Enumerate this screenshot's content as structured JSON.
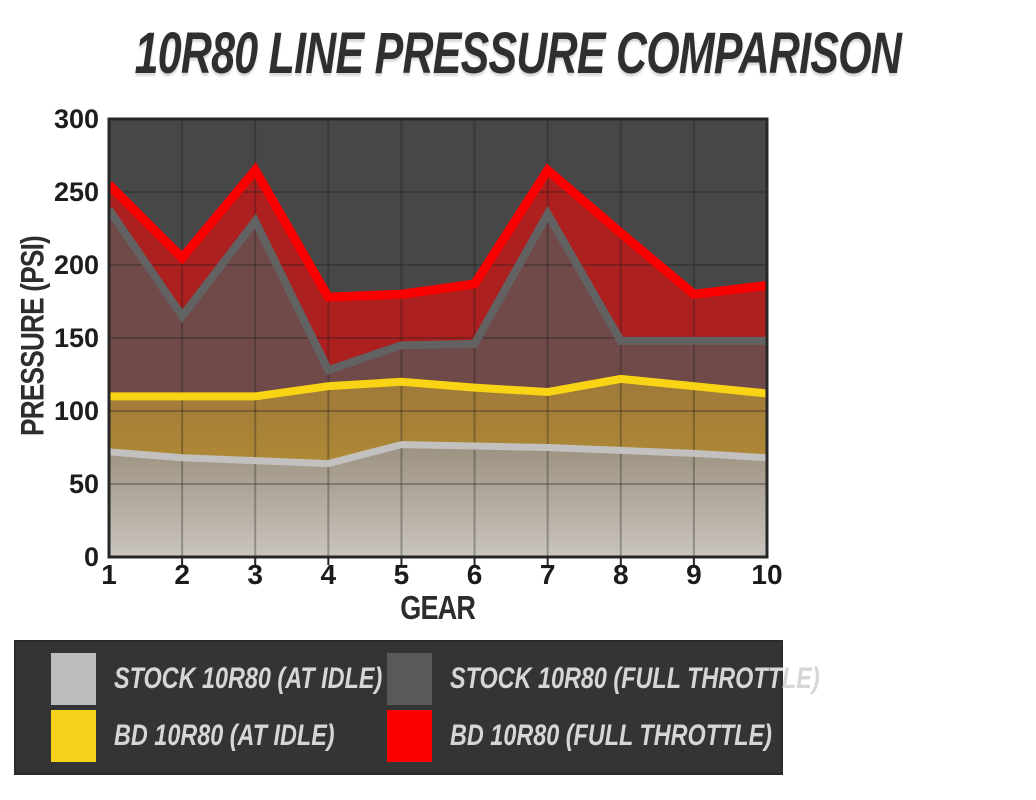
{
  "title": "10R80 LINE PRESSURE COMPARISON",
  "chart_data": {
    "type": "area",
    "title": "10R80 LINE PRESSURE COMPARISON",
    "xlabel": "GEAR",
    "ylabel": "PRESSURE (PSI)",
    "x": [
      1,
      2,
      3,
      4,
      5,
      6,
      7,
      8,
      9,
      10
    ],
    "x_tick_labels": [
      "1",
      "2",
      "3",
      "4",
      "5",
      "6",
      "7",
      "8",
      "9",
      "10"
    ],
    "ylim": [
      0,
      300
    ],
    "y_ticks": [
      0,
      50,
      100,
      150,
      200,
      250,
      300
    ],
    "grid": true,
    "legend_position": "bottom",
    "series": [
      {
        "id": "bd-full-throttle",
        "name": "BD 10R80 (FULL THROTTLE)",
        "line_color": "#fb0000",
        "line_width": 9,
        "fill": {
          "type": "solid",
          "color": "#ff0000",
          "opacity": 0.55
        },
        "values": [
          255,
          205,
          265,
          178,
          180,
          187,
          265,
          222,
          180,
          186
        ]
      },
      {
        "id": "stock-full-throttle",
        "name": "STOCK 10R80 (FULL THROTTLE)",
        "line_color": "#626262",
        "line_width": 8,
        "fill": {
          "type": "solid",
          "color": "#595959",
          "opacity": 0.72
        },
        "values": [
          238,
          165,
          230,
          128,
          145,
          146,
          235,
          148,
          148,
          148
        ]
      },
      {
        "id": "bd-idle",
        "name": "BD 10R80 (AT IDLE)",
        "line_color": "#f8d414",
        "line_width": 8,
        "fill": {
          "type": "gradient",
          "stops": [
            {
              "color": "#f5d11e",
              "opacity": 0.35
            },
            {
              "color": "#f5d11e",
              "opacity": 0.6
            }
          ]
        },
        "values": [
          110,
          110,
          110,
          117,
          120,
          116,
          113,
          122,
          117,
          112
        ]
      },
      {
        "id": "stock-idle",
        "name": "STOCK 10R80 (AT IDLE)",
        "line_color": "#c3c1bf",
        "line_width": 7,
        "fill": {
          "type": "gradient",
          "stops": [
            {
              "color": "#9a948e",
              "opacity": 0.85
            },
            {
              "color": "#cac6c3",
              "opacity": 0.97
            }
          ]
        },
        "values": [
          72,
          68,
          66,
          64,
          77,
          76,
          75,
          73,
          71,
          68
        ]
      }
    ]
  },
  "legend": {
    "items": [
      {
        "label": "STOCK 10R80 (AT IDLE)",
        "color": "#bdbdbd"
      },
      {
        "label": "STOCK 10R80 (FULL THROTTLE)",
        "color": "#595959"
      },
      {
        "label": "BD 10R80 (AT IDLE)",
        "color": "#f6d31a"
      },
      {
        "label": "BD 10R80 (FULL THROTTLE)",
        "color": "#fb0000"
      }
    ]
  },
  "colors": {
    "page_background": "#ffffff",
    "plot_background": "#474747",
    "grid_line": "rgba(25,25,25,0.3)",
    "plot_border": "#272727",
    "y_tick_text": "#1d1d1d",
    "x_tick_text": "#1b1b1b",
    "title_text": "#2d2f31",
    "legend_background": "#343434",
    "legend_text": "#d6d6d6"
  }
}
